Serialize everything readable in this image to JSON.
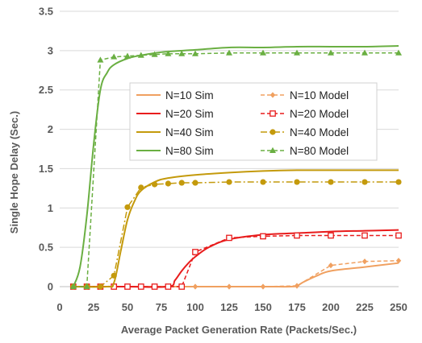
{
  "chart_data": {
    "type": "line",
    "title": "",
    "xlabel": "Average Packet Generation Rate (Packets/Sec.)",
    "ylabel": "Single Hope Delay (Sec.)",
    "xlim": [
      0,
      250
    ],
    "ylim": [
      0,
      3.5
    ],
    "xticks": [
      "0",
      "25",
      "50",
      "75",
      "100",
      "125",
      "150",
      "175",
      "200",
      "225",
      "250"
    ],
    "yticks": [
      "0",
      "0.5",
      "1",
      "1.5",
      "2",
      "2.5",
      "3",
      "3.5"
    ],
    "grid": "horizontal",
    "legend_placement": "center",
    "series": [
      {
        "name": "N=10 Sim",
        "color": "#F0A060",
        "style": "solid",
        "marker": "none",
        "x": [
          10,
          50,
          100,
          150,
          170,
          175,
          180,
          190,
          200,
          225,
          250
        ],
        "y": [
          0,
          0,
          0,
          0,
          0,
          0.01,
          0.06,
          0.14,
          0.2,
          0.25,
          0.3
        ]
      },
      {
        "name": "N=10 Model",
        "color": "#F0A060",
        "style": "dashed",
        "marker": "diamond",
        "x": [
          10,
          20,
          30,
          40,
          50,
          60,
          70,
          80,
          90,
          100,
          125,
          150,
          175,
          200,
          225,
          250
        ],
        "y": [
          0,
          0,
          0,
          0,
          0,
          0,
          0,
          0,
          0,
          0,
          0,
          0,
          0.01,
          0.27,
          0.32,
          0.33
        ]
      },
      {
        "name": "N=20 Sim",
        "color": "#E81C1C",
        "style": "solid",
        "marker": "none",
        "x": [
          10,
          50,
          80,
          85,
          90,
          95,
          100,
          110,
          125,
          150,
          175,
          200,
          225,
          250
        ],
        "y": [
          0,
          0,
          0,
          0.08,
          0.2,
          0.3,
          0.38,
          0.5,
          0.6,
          0.66,
          0.68,
          0.7,
          0.71,
          0.72
        ]
      },
      {
        "name": "N=20 Model",
        "color": "#E81C1C",
        "style": "dashed",
        "marker": "square",
        "x": [
          10,
          20,
          30,
          40,
          50,
          60,
          70,
          80,
          90,
          100,
          125,
          150,
          175,
          200,
          225,
          250
        ],
        "y": [
          0,
          0,
          0,
          0,
          0,
          0,
          0,
          0,
          0,
          0.44,
          0.62,
          0.64,
          0.65,
          0.65,
          0.65,
          0.65
        ]
      },
      {
        "name": "N=40 Sim",
        "color": "#C49A0C",
        "style": "solid",
        "marker": "none",
        "x": [
          10,
          35,
          40,
          45,
          50,
          55,
          60,
          70,
          80,
          100,
          125,
          150,
          175,
          200,
          225,
          250
        ],
        "y": [
          0,
          0,
          0.05,
          0.45,
          0.85,
          1.08,
          1.22,
          1.33,
          1.38,
          1.42,
          1.45,
          1.47,
          1.48,
          1.48,
          1.48,
          1.48
        ]
      },
      {
        "name": "N=40 Model",
        "color": "#C49A0C",
        "style": "dashdot",
        "marker": "circle",
        "x": [
          10,
          20,
          30,
          40,
          50,
          60,
          70,
          80,
          90,
          100,
          125,
          150,
          175,
          200,
          225,
          250
        ],
        "y": [
          0,
          0,
          0,
          0.14,
          1.01,
          1.26,
          1.3,
          1.31,
          1.32,
          1.32,
          1.33,
          1.33,
          1.33,
          1.33,
          1.33,
          1.33
        ]
      },
      {
        "name": "N=80 Sim",
        "color": "#6AAF42",
        "style": "solid",
        "marker": "none",
        "x": [
          10,
          15,
          20,
          25,
          30,
          35,
          40,
          50,
          60,
          75,
          100,
          125,
          150,
          175,
          200,
          225,
          250
        ],
        "y": [
          0,
          0.25,
          0.9,
          1.8,
          2.5,
          2.72,
          2.82,
          2.9,
          2.94,
          2.98,
          3.01,
          3.04,
          3.04,
          3.05,
          3.05,
          3.05,
          3.06
        ]
      },
      {
        "name": "N=80 Model",
        "color": "#6AAF42",
        "style": "dashed",
        "marker": "triangle",
        "x": [
          10,
          20,
          30,
          40,
          50,
          60,
          70,
          80,
          90,
          100,
          125,
          150,
          175,
          200,
          225,
          250
        ],
        "y": [
          0,
          0,
          2.88,
          2.92,
          2.93,
          2.94,
          2.95,
          2.96,
          2.96,
          2.96,
          2.97,
          2.97,
          2.97,
          2.97,
          2.97,
          2.97
        ]
      }
    ]
  }
}
